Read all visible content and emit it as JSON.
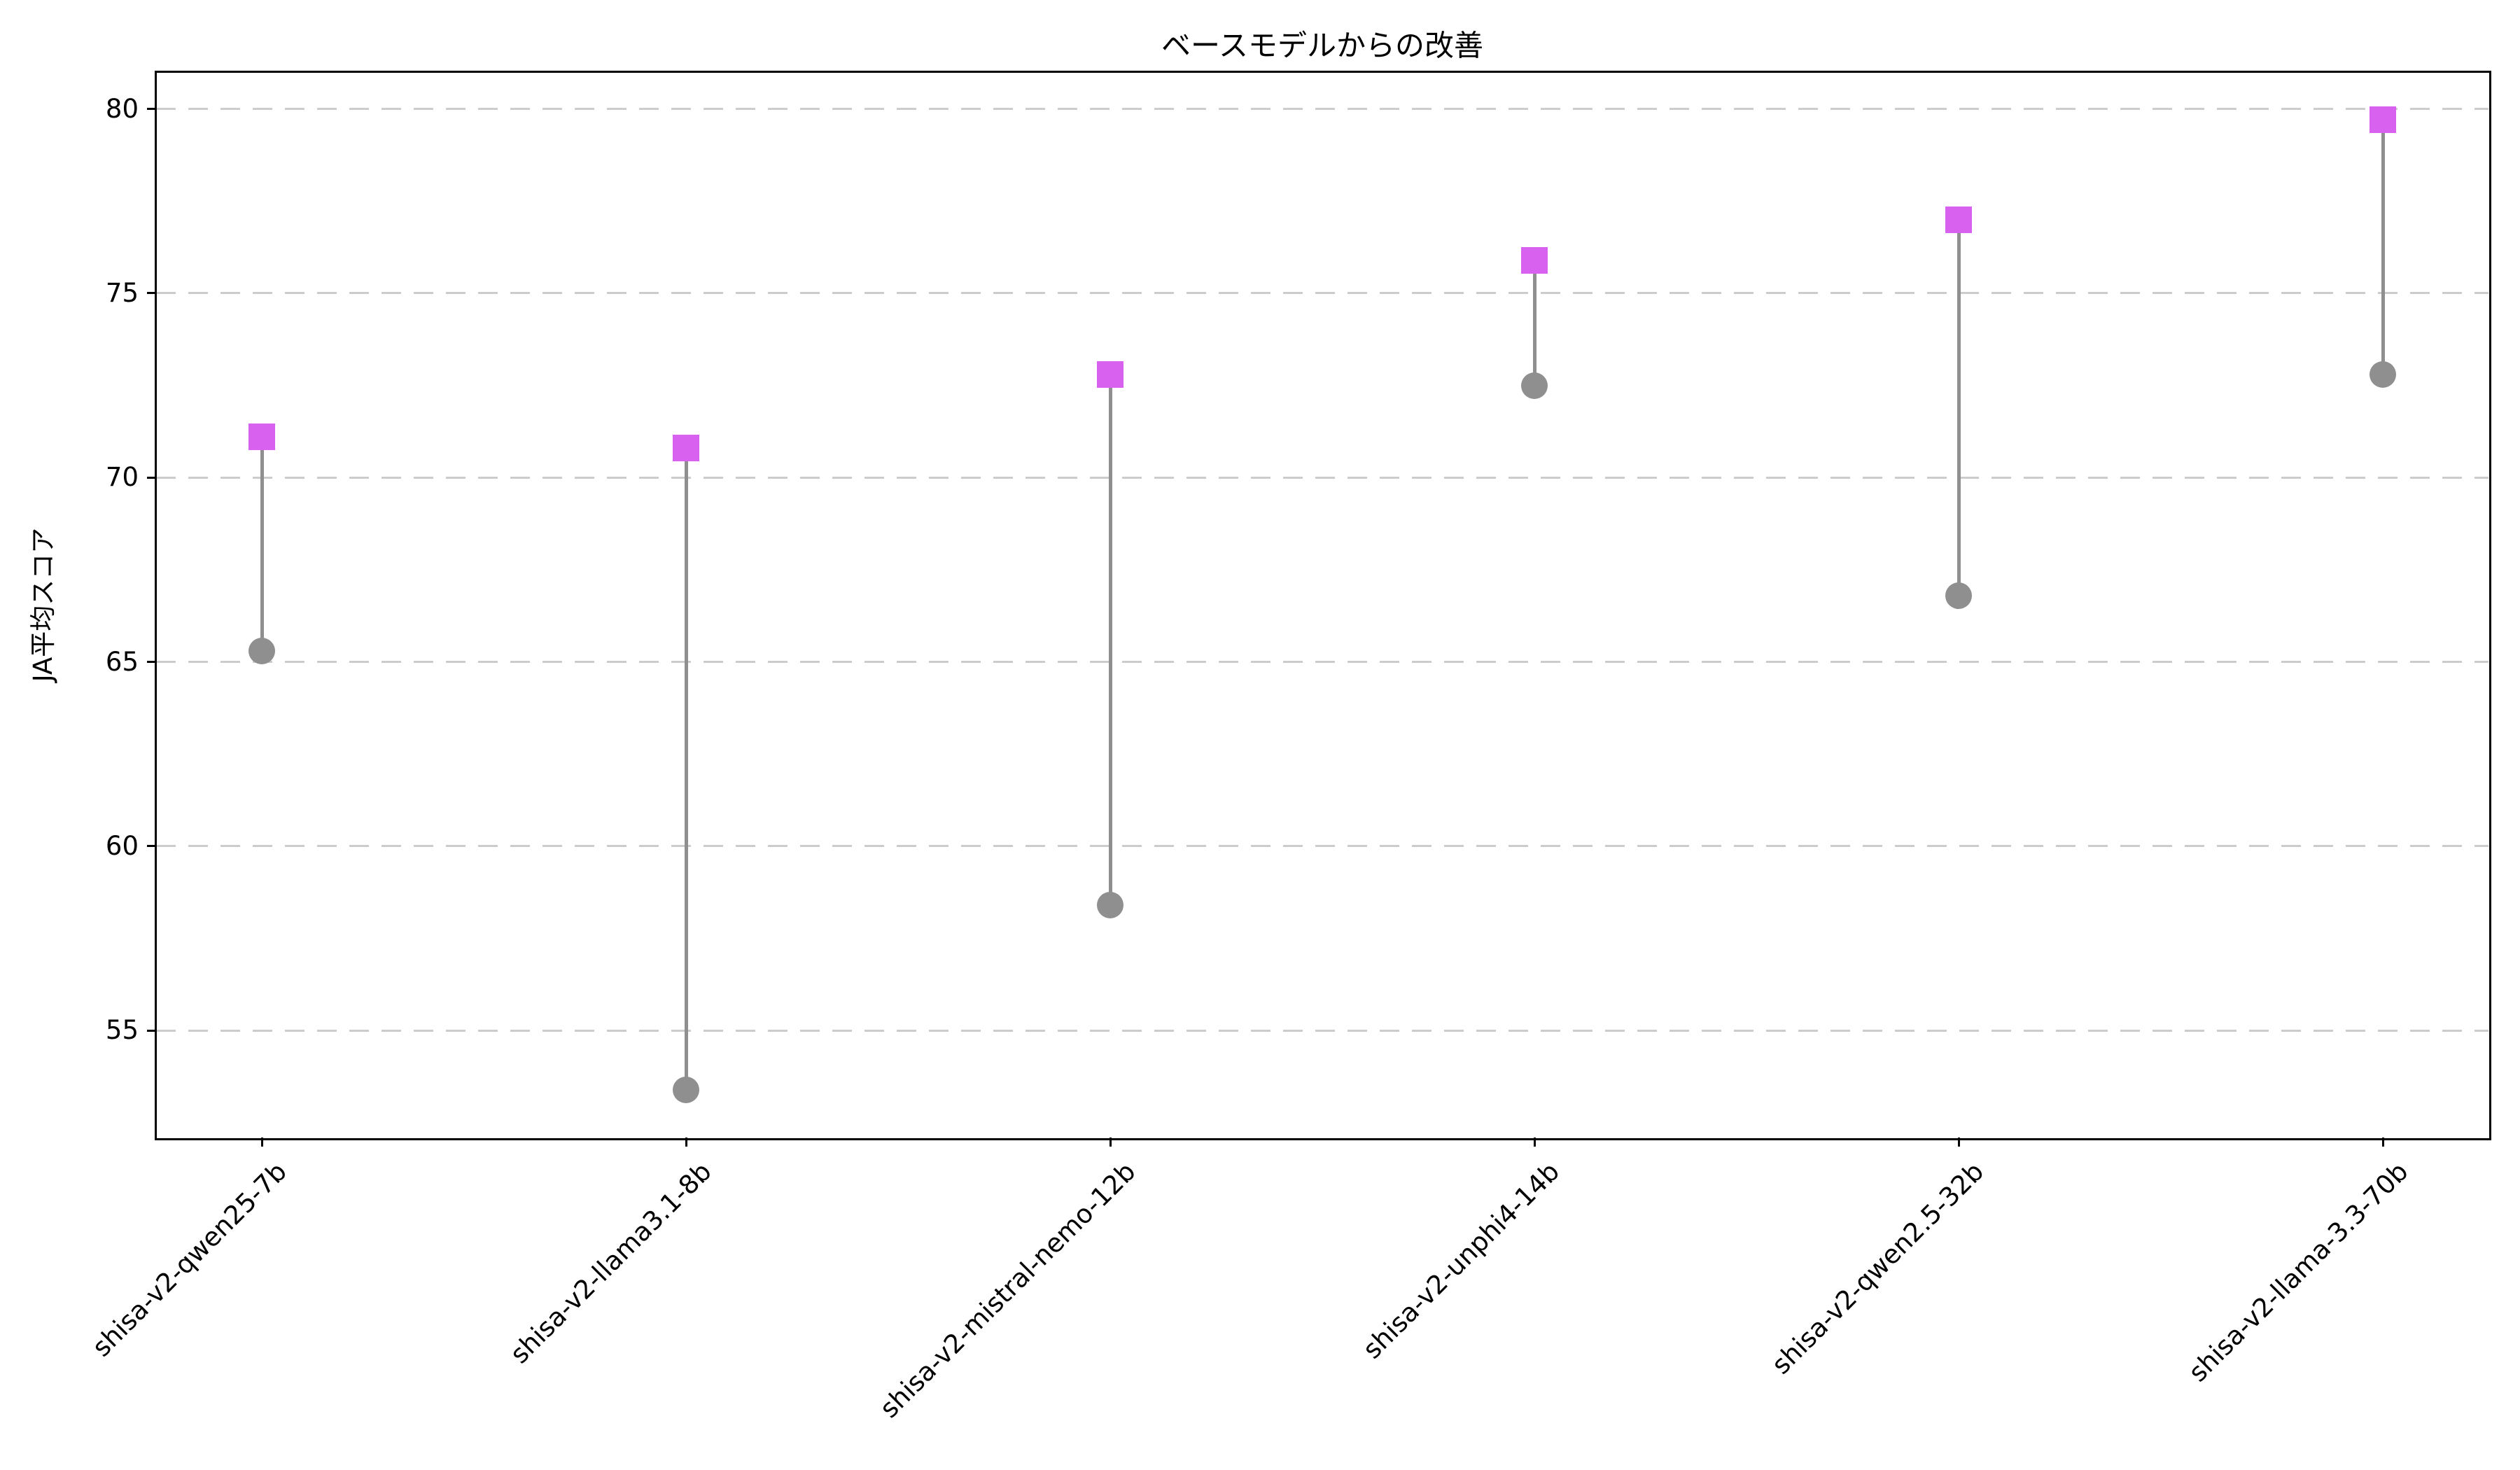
{
  "chart_data": {
    "type": "scatter",
    "variant": "dumbbell",
    "title": "ベースモデルからの改善",
    "xlabel": "",
    "ylabel": "JA平均スコア",
    "categories": [
      "shisa-v2-qwen25-7b",
      "shisa-v2-llama3.1-8b",
      "shisa-v2-mistral-nemo-12b",
      "shisa-v2-unphi4-14b",
      "shisa-v2-qwen2.5-32b",
      "shisa-v2-llama-3.3-70b"
    ],
    "series": [
      {
        "name": "base-model-score",
        "marker": "circle",
        "color": "#8f8f8f",
        "values": [
          65.3,
          53.4,
          58.4,
          72.5,
          66.8,
          72.8
        ]
      },
      {
        "name": "shisa-v2-score",
        "marker": "square",
        "color": "#d862ef",
        "values": [
          71.1,
          70.8,
          72.8,
          75.9,
          77.0,
          79.7
        ]
      }
    ],
    "connector_color": "#8f8f8f",
    "yticks": [
      55,
      60,
      65,
      70,
      75,
      80
    ],
    "ylim": [
      52.1,
      81.0
    ],
    "grid": "dashed-horizontal",
    "gridline_color": "#cccccc",
    "legend": "none"
  }
}
